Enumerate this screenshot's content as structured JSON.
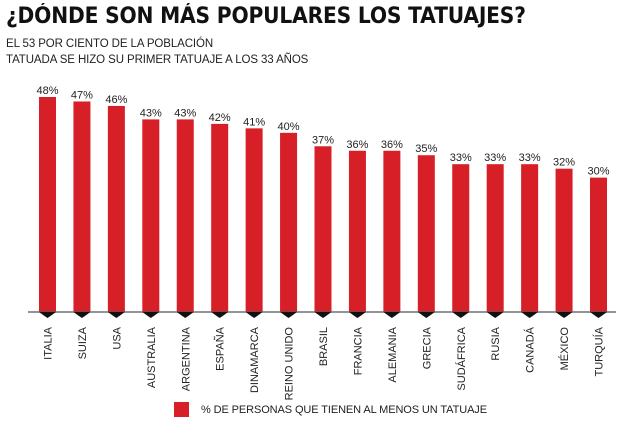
{
  "header": {
    "title": "¿DÓNDE SON MÁS POPULARES LOS TATUAJES?",
    "subtitle_line1": "EL 53 POR CIENTO DE LA POBLACIÓN",
    "subtitle_line2": "TATUADA SE HIZO SU PRIMER TATUAJE A LOS 33 AÑOS"
  },
  "colors": {
    "bar": "#d71f27",
    "axis": "#555555",
    "text": "#222222"
  },
  "chart_data": {
    "type": "bar",
    "title": "¿DÓNDE SON MÁS POPULARES LOS TATUAJES?",
    "subtitle": "EL 53 POR CIENTO DE LA POBLACIÓN TATUADA SE HIZO SU PRIMER TATUAJE A LOS 33 AÑOS",
    "xlabel": "",
    "ylabel": "",
    "categories": [
      "ITALIA",
      "SUIZA",
      "USA",
      "AUSTRALIA",
      "ARGENTINA",
      "ESPAÑA",
      "DINAMARCA",
      "REINO UNIDO",
      "BRASIL",
      "FRANCIA",
      "ALEMANIA",
      "GRECIA",
      "SUDÁFRICA",
      "RUSIA",
      "CANADÁ",
      "MÉXICO",
      "TURQUÍA"
    ],
    "series": [
      {
        "name": "% DE PERSONAS QUE TIENEN AL MENOS UN TATUAJE",
        "values": [
          48,
          47,
          46,
          43,
          43,
          42,
          41,
          40,
          37,
          36,
          36,
          35,
          33,
          33,
          33,
          32,
          30
        ],
        "labels": [
          "48%",
          "47%",
          "46%",
          "43%",
          "43%",
          "42%",
          "41%",
          "40%",
          "37%",
          "36%",
          "36%",
          "35%",
          "33%",
          "33%",
          "33%",
          "32%",
          "30%"
        ]
      }
    ],
    "ylim": [
      0,
      48
    ],
    "grid": false,
    "y_axis_visible": false,
    "category_label_rotation": "vertical",
    "legend_position": "bottom-center"
  },
  "legend": {
    "label": "% DE PERSONAS QUE TIENEN AL MENOS UN TATUAJE"
  }
}
